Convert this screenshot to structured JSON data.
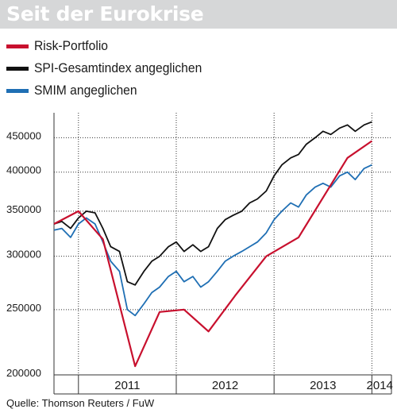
{
  "title": "Seit der Eurokrise",
  "source": "Quelle: Thomson Reuters / FuW",
  "colors": {
    "risk": "#c8102e",
    "spi": "#111111",
    "smim": "#1f6fb4",
    "title_bar": "#d6d7d8",
    "grid": "#333333"
  },
  "chart_data": {
    "type": "line",
    "title": "Seit der Eurokrise",
    "xlabel": "",
    "ylabel": "",
    "yscale": "log",
    "ylim": [
      200000,
      490000
    ],
    "xlim": [
      2010.75,
      2014.2
    ],
    "year_labels": [
      "2011",
      "2012",
      "2013",
      "2014"
    ],
    "year_starts": [
      2011,
      2012,
      2013,
      2014
    ],
    "year_label_x": [
      2011.5,
      2012.5,
      2013.5,
      2014.08
    ],
    "yticks": [
      200000,
      250000,
      300000,
      350000,
      400000,
      450000
    ],
    "ytick_labels": [
      "200000",
      "250000",
      "300000",
      "350000",
      "400000",
      "450000"
    ],
    "grid": true,
    "legend_position": "top-left",
    "series": [
      {
        "name": "Risk-Portfolio",
        "color": "#c8102e",
        "x": [
          2010.75,
          2011.0,
          2011.25,
          2011.58,
          2011.83,
          2012.08,
          2012.33,
          2012.6,
          2012.92,
          2013.25,
          2013.75,
          2014.0
        ],
        "y": [
          335000,
          350000,
          318000,
          206000,
          248000,
          250000,
          232000,
          262000,
          300000,
          320000,
          420000,
          445000
        ]
      },
      {
        "name": "SPI-Gesamtindex angeglichen",
        "color": "#111111",
        "x": [
          2010.75,
          2010.83,
          2010.92,
          2011.0,
          2011.08,
          2011.17,
          2011.25,
          2011.33,
          2011.42,
          2011.5,
          2011.58,
          2011.67,
          2011.75,
          2011.83,
          2011.92,
          2012.0,
          2012.08,
          2012.17,
          2012.25,
          2012.33,
          2012.42,
          2012.5,
          2012.58,
          2012.67,
          2012.75,
          2012.83,
          2012.92,
          2013.0,
          2013.08,
          2013.17,
          2013.25,
          2013.33,
          2013.42,
          2013.5,
          2013.58,
          2013.67,
          2013.75,
          2013.83,
          2013.92,
          2014.0
        ],
        "y": [
          335000,
          338000,
          330000,
          342000,
          350000,
          348000,
          330000,
          310000,
          305000,
          275000,
          272000,
          285000,
          295000,
          300000,
          310000,
          315000,
          305000,
          312000,
          305000,
          310000,
          330000,
          340000,
          345000,
          350000,
          360000,
          365000,
          375000,
          395000,
          410000,
          420000,
          425000,
          440000,
          450000,
          460000,
          455000,
          465000,
          470000,
          460000,
          470000,
          475000
        ]
      },
      {
        "name": "SMIM angeglichen",
        "color": "#1f6fb4",
        "x": [
          2010.75,
          2010.83,
          2010.92,
          2011.0,
          2011.08,
          2011.17,
          2011.25,
          2011.33,
          2011.42,
          2011.5,
          2011.58,
          2011.67,
          2011.75,
          2011.83,
          2011.92,
          2012.0,
          2012.08,
          2012.17,
          2012.25,
          2012.33,
          2012.42,
          2012.5,
          2012.58,
          2012.67,
          2012.75,
          2012.83,
          2012.92,
          2013.0,
          2013.08,
          2013.17,
          2013.25,
          2013.33,
          2013.42,
          2013.5,
          2013.58,
          2013.67,
          2013.75,
          2013.83,
          2013.92,
          2014.0
        ],
        "y": [
          328000,
          330000,
          320000,
          335000,
          342000,
          335000,
          315000,
          295000,
          285000,
          250000,
          245000,
          255000,
          265000,
          270000,
          280000,
          285000,
          275000,
          280000,
          270000,
          275000,
          285000,
          295000,
          300000,
          305000,
          310000,
          315000,
          325000,
          340000,
          350000,
          360000,
          355000,
          370000,
          380000,
          385000,
          380000,
          395000,
          400000,
          390000,
          405000,
          410000
        ]
      }
    ]
  }
}
